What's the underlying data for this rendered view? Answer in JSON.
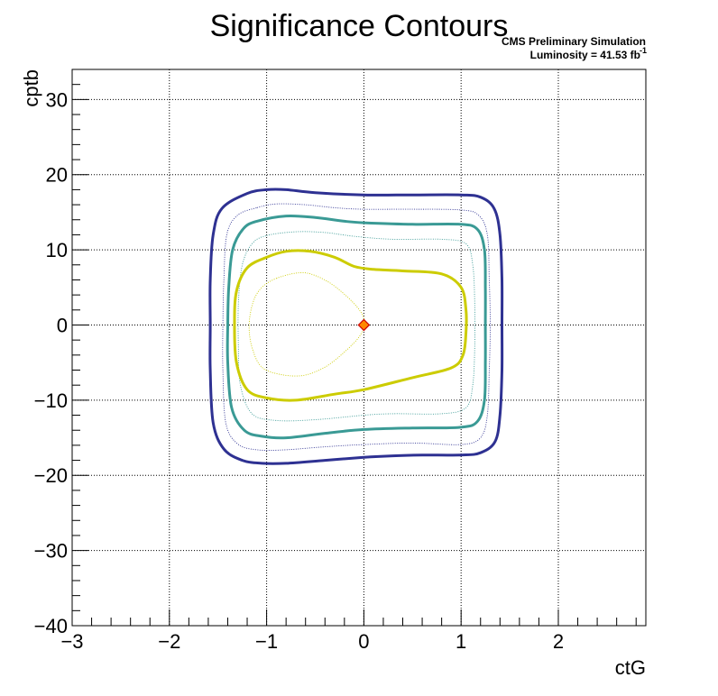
{
  "chart_data": {
    "type": "line",
    "title": "Significance Contours",
    "annotations": [
      "CMS Preliminary Simulation",
      "Luminosity = 41.53 fb",
      "-1"
    ],
    "xlabel": "ctG",
    "ylabel": "cptb",
    "xlim": [
      -3,
      2.9
    ],
    "ylim": [
      -40,
      34
    ],
    "x_ticks": [
      -3,
      -2,
      -1,
      0,
      1,
      2
    ],
    "x_tick_labels": [
      "−3",
      "−2",
      "−1",
      "0",
      "1",
      "2"
    ],
    "y_ticks": [
      -40,
      -30,
      -20,
      -10,
      0,
      10,
      20,
      30
    ],
    "y_tick_labels": [
      "−40",
      "−30",
      "−20",
      "−10",
      "0",
      "10",
      "20",
      "30"
    ],
    "grid": true,
    "legend": "none",
    "series": [
      {
        "color": "#2e3192",
        "style": "thick",
        "points": [
          [
            -1.2,
            17.5
          ],
          [
            -1.0,
            18.0
          ],
          [
            -0.8,
            18.0
          ],
          [
            -0.5,
            17.6
          ],
          [
            0.0,
            17.3
          ],
          [
            0.5,
            17.3
          ],
          [
            1.0,
            17.3
          ],
          [
            1.2,
            17.0
          ],
          [
            1.34,
            15.5
          ],
          [
            1.4,
            12.0
          ],
          [
            1.42,
            6.0
          ],
          [
            1.42,
            0.0
          ],
          [
            1.42,
            -6.0
          ],
          [
            1.4,
            -12.0
          ],
          [
            1.35,
            -15.5
          ],
          [
            1.2,
            -17.0
          ],
          [
            1.0,
            -17.3
          ],
          [
            0.6,
            -17.3
          ],
          [
            0.3,
            -17.4
          ],
          [
            0.0,
            -17.6
          ],
          [
            -0.4,
            -18.0
          ],
          [
            -0.8,
            -18.4
          ],
          [
            -1.05,
            -18.4
          ],
          [
            -1.25,
            -18.0
          ],
          [
            -1.44,
            -16.5
          ],
          [
            -1.55,
            -13.0
          ],
          [
            -1.58,
            -6.0
          ],
          [
            -1.58,
            0.0
          ],
          [
            -1.58,
            6.0
          ],
          [
            -1.55,
            12.0
          ],
          [
            -1.46,
            15.5
          ]
        ]
      },
      {
        "color": "#2e3192",
        "style": "dotted",
        "points": [
          [
            -1.1,
            15.6
          ],
          [
            -0.9,
            16.1
          ],
          [
            -0.6,
            16.0
          ],
          [
            -0.3,
            15.6
          ],
          [
            0.0,
            15.4
          ],
          [
            0.5,
            15.4
          ],
          [
            1.0,
            15.3
          ],
          [
            1.18,
            14.6
          ],
          [
            1.27,
            12.0
          ],
          [
            1.29,
            6.0
          ],
          [
            1.3,
            0.0
          ],
          [
            1.29,
            -6.0
          ],
          [
            1.27,
            -12.0
          ],
          [
            1.2,
            -15.0
          ],
          [
            1.0,
            -15.9
          ],
          [
            0.5,
            -15.7
          ],
          [
            0.0,
            -15.9
          ],
          [
            -0.4,
            -16.2
          ],
          [
            -0.8,
            -16.6
          ],
          [
            -1.1,
            -16.6
          ],
          [
            -1.3,
            -15.8
          ],
          [
            -1.42,
            -13.0
          ],
          [
            -1.45,
            -6.0
          ],
          [
            -1.45,
            0.0
          ],
          [
            -1.44,
            6.0
          ],
          [
            -1.41,
            12.0
          ],
          [
            -1.3,
            14.6
          ]
        ]
      },
      {
        "color": "#3a9a95",
        "style": "thick",
        "points": [
          [
            -1.1,
            13.8
          ],
          [
            -0.8,
            14.5
          ],
          [
            -0.5,
            14.3
          ],
          [
            -0.2,
            13.8
          ],
          [
            0.0,
            13.6
          ],
          [
            0.5,
            13.4
          ],
          [
            1.0,
            13.4
          ],
          [
            1.17,
            12.7
          ],
          [
            1.24,
            10.0
          ],
          [
            1.25,
            5.0
          ],
          [
            1.25,
            0.0
          ],
          [
            1.25,
            -5.0
          ],
          [
            1.24,
            -10.0
          ],
          [
            1.17,
            -12.8
          ],
          [
            1.0,
            -13.6
          ],
          [
            0.5,
            -13.7
          ],
          [
            0.0,
            -13.9
          ],
          [
            -0.4,
            -14.4
          ],
          [
            -0.8,
            -15.0
          ],
          [
            -1.05,
            -14.8
          ],
          [
            -1.23,
            -14.0
          ],
          [
            -1.36,
            -11.0
          ],
          [
            -1.4,
            -5.0
          ],
          [
            -1.4,
            0.0
          ],
          [
            -1.39,
            5.0
          ],
          [
            -1.35,
            10.0
          ],
          [
            -1.24,
            12.8
          ]
        ]
      },
      {
        "color": "#3a9a95",
        "style": "dotted",
        "points": [
          [
            -1.0,
            11.9
          ],
          [
            -0.7,
            12.4
          ],
          [
            -0.4,
            12.3
          ],
          [
            -0.1,
            11.8
          ],
          [
            0.3,
            11.4
          ],
          [
            0.8,
            11.4
          ],
          [
            1.05,
            10.8
          ],
          [
            1.12,
            8.0
          ],
          [
            1.14,
            3.0
          ],
          [
            1.14,
            -3.0
          ],
          [
            1.12,
            -8.0
          ],
          [
            1.05,
            -11.0
          ],
          [
            0.8,
            -11.8
          ],
          [
            0.3,
            -11.8
          ],
          [
            0.0,
            -12.0
          ],
          [
            -0.5,
            -12.6
          ],
          [
            -0.9,
            -12.7
          ],
          [
            -1.15,
            -11.8
          ],
          [
            -1.27,
            -8.0
          ],
          [
            -1.29,
            -3.0
          ],
          [
            -1.29,
            3.0
          ],
          [
            -1.25,
            8.0
          ],
          [
            -1.15,
            10.8
          ]
        ]
      },
      {
        "color": "#cccc00",
        "style": "thick",
        "points": [
          [
            -1.0,
            9.0
          ],
          [
            -0.8,
            9.8
          ],
          [
            -0.55,
            9.8
          ],
          [
            -0.3,
            9.0
          ],
          [
            -0.1,
            7.8
          ],
          [
            0.1,
            7.4
          ],
          [
            0.4,
            7.2
          ],
          [
            0.8,
            6.8
          ],
          [
            1.0,
            5.0
          ],
          [
            1.05,
            2.0
          ],
          [
            1.05,
            -1.0
          ],
          [
            1.02,
            -4.0
          ],
          [
            0.9,
            -5.7
          ],
          [
            0.5,
            -7.0
          ],
          [
            0.0,
            -8.6
          ],
          [
            -0.3,
            -9.2
          ],
          [
            -0.7,
            -10.0
          ],
          [
            -1.0,
            -9.7
          ],
          [
            -1.2,
            -8.6
          ],
          [
            -1.31,
            -5.0
          ],
          [
            -1.33,
            0.0
          ],
          [
            -1.31,
            4.5
          ],
          [
            -1.2,
            7.6
          ]
        ]
      },
      {
        "color": "#cccc00",
        "style": "dotted",
        "points": [
          [
            -0.9,
            6.2
          ],
          [
            -0.7,
            6.9
          ],
          [
            -0.55,
            6.8
          ],
          [
            -0.35,
            5.6
          ],
          [
            -0.15,
            3.5
          ],
          [
            -0.02,
            1.5
          ],
          [
            0.0,
            0.0
          ],
          [
            -0.05,
            -1.6
          ],
          [
            -0.2,
            -3.6
          ],
          [
            -0.4,
            -5.6
          ],
          [
            -0.62,
            -6.7
          ],
          [
            -0.85,
            -6.6
          ],
          [
            -1.05,
            -5.6
          ],
          [
            -1.15,
            -3.0
          ],
          [
            -1.18,
            0.0
          ],
          [
            -1.14,
            3.0
          ],
          [
            -1.05,
            5.0
          ]
        ]
      }
    ],
    "best_fit_marker": {
      "x": 0.0,
      "y": 0.0,
      "fill": "#ff8800",
      "stroke": "#cc0000"
    }
  }
}
